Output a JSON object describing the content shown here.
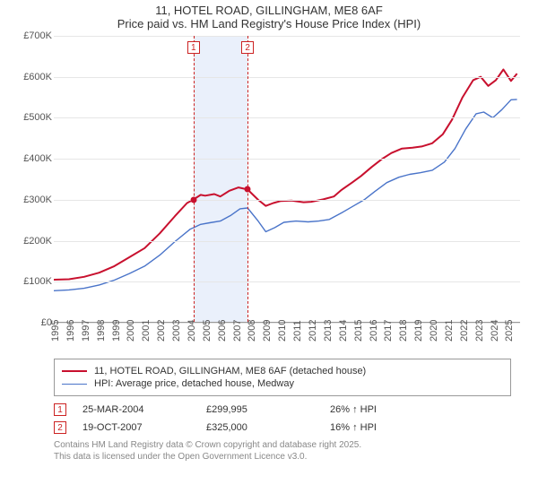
{
  "title_line1": "11, HOTEL ROAD, GILLINGHAM, ME8 6AF",
  "title_line2": "Price paid vs. HM Land Registry's House Price Index (HPI)",
  "chart": {
    "type": "line",
    "xlim": [
      1995,
      2025.8
    ],
    "ylim": [
      0,
      700000
    ],
    "ytick_step": 100000,
    "yticks": [
      "£0",
      "£100K",
      "£200K",
      "£300K",
      "£400K",
      "£500K",
      "£600K",
      "£700K"
    ],
    "xticks": [
      1995,
      1996,
      1997,
      1998,
      1999,
      2000,
      2001,
      2002,
      2003,
      2004,
      2005,
      2006,
      2007,
      2008,
      2009,
      2010,
      2011,
      2012,
      2013,
      2014,
      2015,
      2016,
      2017,
      2018,
      2019,
      2020,
      2021,
      2022,
      2023,
      2024,
      2025
    ],
    "grid_color": "#e6e6e6",
    "background_color": "#ffffff",
    "series": [
      {
        "name": "price_paid",
        "label": "11, HOTEL ROAD, GILLINGHAM, ME8 6AF (detached house)",
        "color": "#c8102e",
        "width": 2,
        "data": [
          [
            1995,
            105000
          ],
          [
            1996,
            106000
          ],
          [
            1997,
            112000
          ],
          [
            1998,
            122000
          ],
          [
            1999,
            138000
          ],
          [
            2000,
            160000
          ],
          [
            2001,
            182000
          ],
          [
            2002,
            218000
          ],
          [
            2003,
            260000
          ],
          [
            2003.8,
            292000
          ],
          [
            2004.2,
            299995
          ],
          [
            2004.7,
            312000
          ],
          [
            2005,
            310000
          ],
          [
            2005.6,
            314000
          ],
          [
            2006,
            308000
          ],
          [
            2006.6,
            322000
          ],
          [
            2007.2,
            330000
          ],
          [
            2007.8,
            325000
          ],
          [
            2008.5,
            300000
          ],
          [
            2009,
            285000
          ],
          [
            2009.5,
            292000
          ],
          [
            2010,
            297000
          ],
          [
            2010.7,
            298000
          ],
          [
            2011.5,
            294000
          ],
          [
            2012,
            295000
          ],
          [
            2012.8,
            301000
          ],
          [
            2013.5,
            308000
          ],
          [
            2014,
            324000
          ],
          [
            2014.7,
            342000
          ],
          [
            2015.3,
            358000
          ],
          [
            2016,
            380000
          ],
          [
            2016.7,
            400000
          ],
          [
            2017.3,
            414000
          ],
          [
            2018,
            425000
          ],
          [
            2018.7,
            427000
          ],
          [
            2019.3,
            430000
          ],
          [
            2020,
            438000
          ],
          [
            2020.7,
            460000
          ],
          [
            2021.3,
            495000
          ],
          [
            2022,
            550000
          ],
          [
            2022.7,
            592000
          ],
          [
            2023.2,
            600000
          ],
          [
            2023.7,
            578000
          ],
          [
            2024.2,
            592000
          ],
          [
            2024.7,
            618000
          ],
          [
            2025.2,
            590000
          ],
          [
            2025.6,
            608000
          ]
        ]
      },
      {
        "name": "hpi",
        "label": "HPI: Average price, detached house, Medway",
        "color": "#4a74c9",
        "width": 1.4,
        "data": [
          [
            1995,
            78000
          ],
          [
            1996,
            80000
          ],
          [
            1997,
            84000
          ],
          [
            1998,
            92000
          ],
          [
            1999,
            104000
          ],
          [
            2000,
            120000
          ],
          [
            2001,
            138000
          ],
          [
            2002,
            165000
          ],
          [
            2003,
            198000
          ],
          [
            2004,
            228000
          ],
          [
            2004.7,
            240000
          ],
          [
            2005.3,
            244000
          ],
          [
            2006,
            248000
          ],
          [
            2006.7,
            262000
          ],
          [
            2007.3,
            278000
          ],
          [
            2007.8,
            280000
          ],
          [
            2008.5,
            248000
          ],
          [
            2009,
            222000
          ],
          [
            2009.6,
            232000
          ],
          [
            2010.2,
            245000
          ],
          [
            2011,
            248000
          ],
          [
            2011.8,
            246000
          ],
          [
            2012.5,
            248000
          ],
          [
            2013.2,
            252000
          ],
          [
            2014,
            268000
          ],
          [
            2014.8,
            285000
          ],
          [
            2015.5,
            300000
          ],
          [
            2016.2,
            320000
          ],
          [
            2017,
            342000
          ],
          [
            2017.8,
            355000
          ],
          [
            2018.5,
            362000
          ],
          [
            2019.2,
            366000
          ],
          [
            2020,
            372000
          ],
          [
            2020.8,
            392000
          ],
          [
            2021.5,
            425000
          ],
          [
            2022.2,
            472000
          ],
          [
            2022.9,
            510000
          ],
          [
            2023.4,
            514000
          ],
          [
            2024,
            500000
          ],
          [
            2024.6,
            520000
          ],
          [
            2025.2,
            544000
          ],
          [
            2025.6,
            545000
          ]
        ]
      }
    ],
    "shade": {
      "from": 2004.23,
      "to": 2007.8,
      "color": "#eaf0fb"
    },
    "markers": [
      {
        "n": "1",
        "x": 2004.23,
        "y": 299995
      },
      {
        "n": "2",
        "x": 2007.8,
        "y": 325000
      }
    ],
    "marker_dot_color": "#c8102e"
  },
  "legend": {
    "series1": "11, HOTEL ROAD, GILLINGHAM, ME8 6AF (detached house)",
    "series2": "HPI: Average price, detached house, Medway"
  },
  "sales": [
    {
      "n": "1",
      "date": "25-MAR-2004",
      "price": "£299,995",
      "delta": "26% ↑ HPI"
    },
    {
      "n": "2",
      "date": "19-OCT-2007",
      "price": "£325,000",
      "delta": "16% ↑ HPI"
    }
  ],
  "attribution_line1": "Contains HM Land Registry data © Crown copyright and database right 2025.",
  "attribution_line2": "This data is licensed under the Open Government Licence v3.0."
}
